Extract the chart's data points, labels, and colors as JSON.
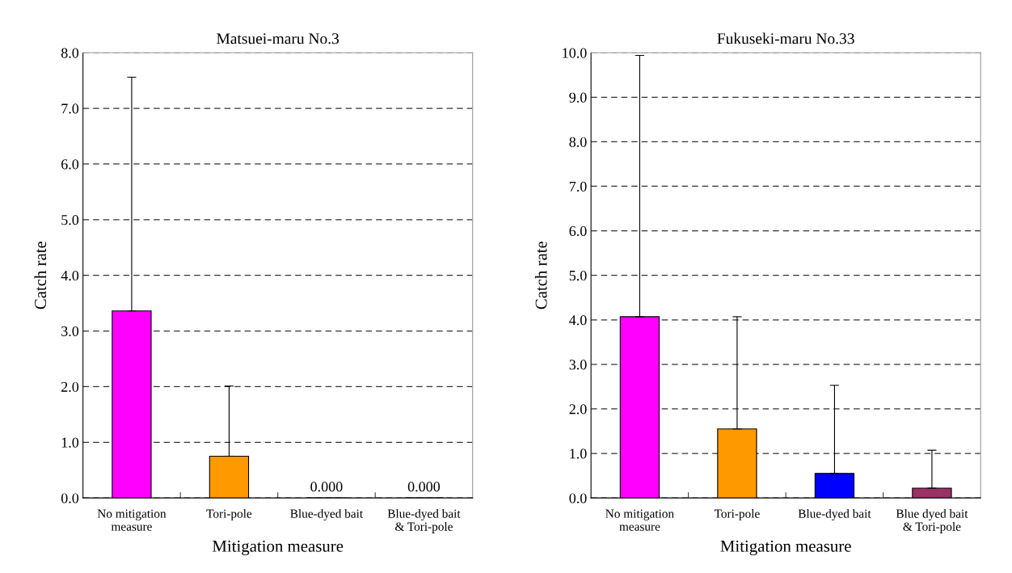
{
  "chart_data": [
    {
      "type": "bar",
      "title": "Matsuei-maru No.3",
      "xlabel": "Mitigation measure",
      "ylabel": "Catch rate",
      "categories": [
        "No mitigation\nmeasure",
        "Tori-pole",
        "Blue-dyed bait",
        "Blue-dyed bait\n& Tori-pole"
      ],
      "values": [
        3.36,
        0.75,
        0,
        0
      ],
      "colors": [
        "#ff00ff",
        "#ff9900",
        "#0000ff",
        "#993366"
      ],
      "errors": [
        [
          3.36,
          7.56
        ],
        [
          0.75,
          2.01
        ],
        null,
        null
      ],
      "value_labels": [
        null,
        null,
        "0.000",
        "0.000"
      ],
      "ylim": [
        0,
        8
      ],
      "yticks": [
        {
          "value": 0,
          "label": "0.0"
        },
        {
          "value": 1,
          "label": "1.0"
        },
        {
          "value": 2,
          "label": "2.0"
        },
        {
          "value": 3,
          "label": "3.0"
        },
        {
          "value": 4,
          "label": "4.0"
        },
        {
          "value": 5,
          "label": "5.0"
        },
        {
          "value": 6,
          "label": "6.0"
        },
        {
          "value": 7,
          "label": "7.0"
        },
        {
          "value": 8,
          "label": "8.0"
        }
      ],
      "grid": "y"
    },
    {
      "type": "bar",
      "title": "Fukuseki-maru No.33",
      "xlabel": "Mitigation measure",
      "ylabel": "Catch rate",
      "categories": [
        "No mitigation\nmeasure",
        "Tori-pole",
        "Blue-dyed bait",
        "Blue dyed bait\n& Tori-pole"
      ],
      "values": [
        4.07,
        1.55,
        0.55,
        0.22
      ],
      "colors": [
        "#ff00ff",
        "#ff9900",
        "#0000ff",
        "#993366"
      ],
      "errors": [
        [
          4.07,
          9.94
        ],
        [
          1.55,
          4.07
        ],
        [
          0.55,
          2.53
        ],
        [
          0.22,
          1.07
        ]
      ],
      "ylim": [
        0,
        10
      ],
      "yticks": [
        {
          "value": 0,
          "label": "0.0"
        },
        {
          "value": 1,
          "label": "1.0"
        },
        {
          "value": 2,
          "label": "2.0"
        },
        {
          "value": 3,
          "label": "3.0"
        },
        {
          "value": 4,
          "label": "4.0"
        },
        {
          "value": 5,
          "label": "5.0"
        },
        {
          "value": 6,
          "label": "6.0"
        },
        {
          "value": 7,
          "label": "7.0"
        },
        {
          "value": 8,
          "label": "8.0"
        },
        {
          "value": 9,
          "label": "9.0"
        },
        {
          "value": 10,
          "label": "10.0"
        }
      ],
      "grid": "y"
    }
  ]
}
